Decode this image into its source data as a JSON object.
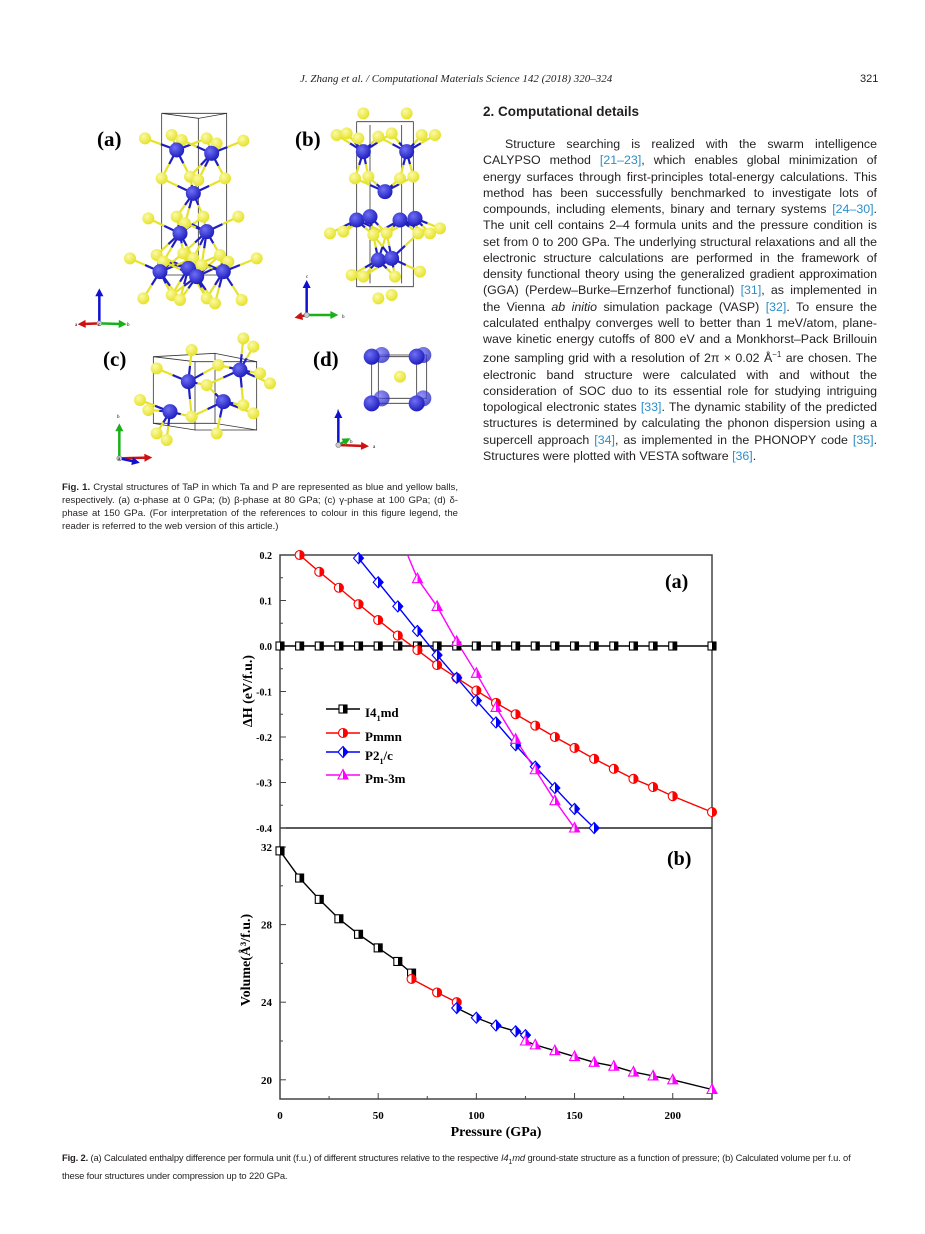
{
  "header": {
    "running_head": "J. Zhang et al. / Computational Materials Science 142 (2018) 320–324",
    "page_number": "321"
  },
  "section": {
    "heading": "2. Computational details",
    "segments": [
      "Structure searching is realized with the swarm intelligence CALYPSO method ",
      "[21–23]",
      ", which enables global minimization of energy surfaces through first-principles total-energy calculations. This method has been successfully benchmarked to investigate lots of compounds, including elements, binary and ternary systems ",
      "[24–30]",
      ". The unit cell contains 2–4 formula units and the pressure condition is set from 0 to 200 GPa. The underlying structural relaxations and all the electronic structure calculations are performed in the framework of density functional theory using the generalized gradient approximation (GGA) (Perdew–Burke–Ernzerhof functional) ",
      "[31]",
      ", as implemented in the Vienna ",
      "ab initio",
      " simulation package (VASP) ",
      "[32]",
      ". To ensure the calculated enthalpy converges well to better than 1 meV/atom, plane-wave kinetic energy cutoffs of 800 eV and a Monkhorst–Pack Brillouin zone sampling grid with a resolution of 2π × 0.02 Å",
      "−1",
      " are chosen. The electronic band structure were calculated with and without the consideration of SOC duo to its essential role for studying intriguing topological electronic states ",
      "[33]",
      ". The dynamic stability of the predicted structures is determined by calculating the phonon dispersion using a supercell approach ",
      "[34]",
      ", as implemented in the PHONOPY code ",
      "[35]",
      ". Structures were plotted with VESTA software ",
      "[36]",
      "."
    ]
  },
  "figure1": {
    "panel_labels": [
      "(a)",
      "(b)",
      "(c)",
      "(d)"
    ],
    "axis_letters": {
      "a": "a",
      "b": "b",
      "c": "c"
    },
    "colors": {
      "Ta": "#1f1fbf",
      "P": "#e6e22a"
    },
    "caption_label": "Fig. 1.",
    "caption_text": " Crystal structures of TaP in which Ta and P are represented as blue and yellow balls, respectively. (a) α-phase at 0 GPa; (b) β-phase at 80 GPa; (c) γ-phase at 100 GPa; (d) δ-phase at 150 GPa. (For interpretation of the references to colour in this figure legend, the reader is referred to the web version of this article.)"
  },
  "figure2": {
    "caption_label": "Fig. 2.",
    "caption_text_1": " (a) Calculated enthalpy difference per formula unit (f.u.) of different structures relative to the respective ",
    "caption_italic": "I4",
    "caption_sub": "1",
    "caption_italic_2": "md",
    "caption_text_2": " ground-state structure as a function of pressure; (b) Calculated volume per f.u. of these four structures under compression up to 220 GPa."
  },
  "chart_data": [
    {
      "type": "line",
      "panel_label": "(a)",
      "xlabel": "Pressure (GPa)",
      "ylabel": "ΔH (eV/f.u.)",
      "xlim": [
        0,
        220
      ],
      "ylim": [
        -0.4,
        0.2
      ],
      "yticks": [
        "0.2",
        "0.1",
        "0.0",
        "-0.1",
        "-0.2",
        "-0.3",
        "-0.4"
      ],
      "legend_position": "center-left",
      "series": [
        {
          "name": "I4₁md",
          "label_main": "I4",
          "label_sub": "1",
          "label_tail": "md",
          "color": "#000000",
          "marker": "square",
          "x": [
            0,
            10,
            20,
            30,
            40,
            50,
            60,
            70,
            80,
            90,
            100,
            110,
            120,
            130,
            140,
            150,
            160,
            170,
            180,
            190,
            200,
            220
          ],
          "y": [
            0,
            0,
            0,
            0,
            0,
            0,
            0,
            0,
            0,
            0,
            0,
            0,
            0,
            0,
            0,
            0,
            0,
            0,
            0,
            0,
            0,
            0
          ]
        },
        {
          "name": "Pmmn",
          "label_main": "Pmmn",
          "label_sub": "",
          "label_tail": "",
          "color": "#ff0000",
          "marker": "circle",
          "x": [
            10,
            20,
            30,
            40,
            50,
            60,
            70,
            80,
            90,
            100,
            110,
            120,
            130,
            140,
            150,
            160,
            170,
            180,
            190,
            200,
            220
          ],
          "y": [
            0.2,
            0.163,
            0.128,
            0.092,
            0.057,
            0.023,
            -0.009,
            -0.042,
            -0.07,
            -0.098,
            -0.125,
            -0.15,
            -0.175,
            -0.2,
            -0.224,
            -0.248,
            -0.27,
            -0.292,
            -0.31,
            -0.33,
            -0.365
          ]
        },
        {
          "name": "P2₁/c",
          "label_main": "P2",
          "label_sub": "1",
          "label_tail": "/c",
          "color": "#0000ff",
          "marker": "diamond",
          "x": [
            40,
            50,
            60,
            70,
            80,
            90,
            100,
            110,
            120,
            130,
            140,
            150,
            160
          ],
          "y": [
            0.193,
            0.14,
            0.087,
            0.033,
            -0.02,
            -0.07,
            -0.12,
            -0.168,
            -0.218,
            -0.265,
            -0.312,
            -0.358,
            -0.4
          ]
        },
        {
          "name": "Pm-3m",
          "label_main": "Pm-3m",
          "label_sub": "",
          "label_tail": "",
          "color": "#ff00ff",
          "marker": "triangle",
          "x": [
            65,
            70,
            80,
            90,
            100,
            110,
            120,
            130,
            140,
            150
          ],
          "y": [
            0.2,
            0.148,
            0.087,
            0.01,
            -0.06,
            -0.135,
            -0.205,
            -0.272,
            -0.34,
            -0.4
          ]
        }
      ]
    },
    {
      "type": "line",
      "panel_label": "(b)",
      "xlabel": "Pressure (GPa)",
      "ylabel": "Volume(Å³/f.u.)",
      "xlim": [
        0,
        220
      ],
      "ylim": [
        19,
        33
      ],
      "xticks": [
        "0",
        "50",
        "100",
        "150",
        "200"
      ],
      "yticks": [
        "32",
        "28",
        "24",
        "20"
      ],
      "series": [
        {
          "name": "I4₁md",
          "color": "#000000",
          "marker": "square",
          "x": [
            0,
            10,
            20,
            30,
            40,
            50,
            60,
            67
          ],
          "y": [
            31.8,
            30.4,
            29.3,
            28.3,
            27.5,
            26.8,
            26.1,
            25.5
          ]
        },
        {
          "name": "Pmmn",
          "color": "#ff0000",
          "marker": "circle",
          "x": [
            67,
            80,
            90
          ],
          "y": [
            25.2,
            24.5,
            24.0
          ]
        },
        {
          "name": "P2₁/c",
          "color": "#0000ff",
          "marker": "diamond",
          "x": [
            90,
            100,
            110,
            120,
            125
          ],
          "y": [
            23.7,
            23.2,
            22.8,
            22.5,
            22.3
          ]
        },
        {
          "name": "Pm-3m",
          "color": "#ff00ff",
          "marker": "triangle",
          "x": [
            125,
            130,
            140,
            150,
            160,
            170,
            180,
            190,
            200,
            220
          ],
          "y": [
            22.0,
            21.8,
            21.5,
            21.2,
            20.9,
            20.7,
            20.4,
            20.2,
            20.0,
            19.5
          ]
        }
      ]
    }
  ]
}
